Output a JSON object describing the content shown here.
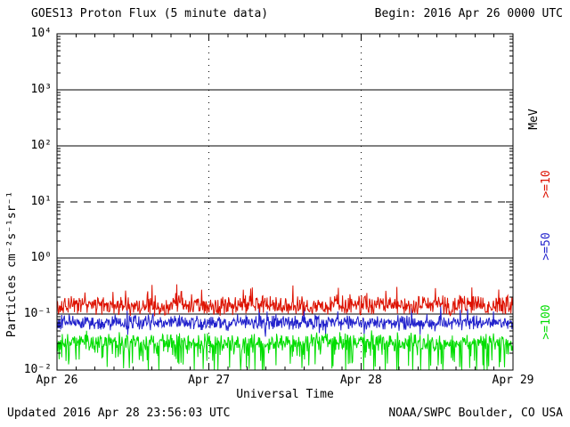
{
  "header": {
    "begin_label": "Begin: 2016 Apr 26 0000 UTC"
  },
  "footer": {
    "updated": "Updated 2016 Apr 28 23:56:03 UTC",
    "source": "NOAA/SWPC Boulder, CO USA"
  },
  "chart_data": {
    "type": "line",
    "title": "GOES13 Proton Flux (5 minute data)",
    "xlabel": "Universal Time",
    "ylabel": "Particles cm⁻²s⁻¹sr⁻¹",
    "right_axis_label": "MeV",
    "x_start": "2016 Apr 26 0000 UTC",
    "x_span_days": 3,
    "points_per_day": 288,
    "ylim_log10": [
      -2,
      4
    ],
    "x_ticks": [
      {
        "day": 0,
        "label": "Apr 26"
      },
      {
        "day": 1,
        "label": "Apr 27"
      },
      {
        "day": 2,
        "label": "Apr 28"
      },
      {
        "day": 3,
        "label": "Apr 29"
      }
    ],
    "y_ticks": [
      {
        "log": 4,
        "label": "10⁴"
      },
      {
        "log": 3,
        "label": "10³"
      },
      {
        "log": 2,
        "label": "10²"
      },
      {
        "log": 1,
        "label": "10¹"
      },
      {
        "log": 0,
        "label": "10⁰"
      },
      {
        "log": -1,
        "label": "10⁻¹"
      },
      {
        "log": -2,
        "label": "10⁻²"
      }
    ],
    "gridlines": {
      "solid_log10": [
        3,
        2,
        0,
        -1
      ],
      "dashed_log10": [
        1
      ],
      "dotted_day_lines": [
        1,
        2
      ]
    },
    "series": [
      {
        "name": ">=10",
        "color": "#dd1100",
        "base_log10": -0.85,
        "noise_log10": 0.2,
        "up_spike_prob": 0.06,
        "up_spike_log10": 0.35,
        "down_spike_prob": 0.0,
        "down_spike_log10": 0.0,
        "approx_range_pfu": [
          0.08,
          0.5
        ]
      },
      {
        "name": ">=50",
        "color": "#2222cc",
        "base_log10": -1.15,
        "noise_log10": 0.16,
        "up_spike_prob": 0.05,
        "up_spike_log10": 0.25,
        "down_spike_prob": 0.05,
        "down_spike_log10": 0.2,
        "approx_range_pfu": [
          0.04,
          0.17
        ]
      },
      {
        "name": ">=100",
        "color": "#00dd00",
        "base_log10": -1.5,
        "noise_log10": 0.18,
        "up_spike_prob": 0.04,
        "up_spike_log10": 0.2,
        "down_spike_prob": 0.22,
        "down_spike_log10": 0.55,
        "approx_range_pfu": [
          0.01,
          0.06
        ]
      }
    ]
  }
}
